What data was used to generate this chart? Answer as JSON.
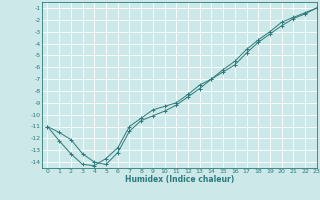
{
  "xlabel": "Humidex (Indice chaleur)",
  "ylabel": "",
  "background_color": "#cce8e8",
  "line_color": "#2d7a7a",
  "grid_color": "#ffffff",
  "xlim": [
    -0.5,
    23
  ],
  "ylim": [
    -14.5,
    -0.5
  ],
  "yticks": [
    -1,
    -2,
    -3,
    -4,
    -5,
    -6,
    -7,
    -8,
    -9,
    -10,
    -11,
    -12,
    -13,
    -14
  ],
  "xticks": [
    0,
    1,
    2,
    3,
    4,
    5,
    6,
    7,
    8,
    9,
    10,
    11,
    12,
    13,
    14,
    15,
    16,
    17,
    18,
    19,
    20,
    21,
    22,
    23
  ],
  "line1_x": [
    0,
    1,
    2,
    3,
    4,
    5,
    6,
    7,
    8,
    9,
    10,
    11,
    12,
    13,
    14,
    15,
    16,
    17,
    18,
    19,
    20,
    21,
    22,
    23
  ],
  "line1_y": [
    -11,
    -12.2,
    -13.3,
    -14.2,
    -14.3,
    -13.7,
    -12.8,
    -11.0,
    -10.3,
    -9.6,
    -9.3,
    -9.0,
    -8.3,
    -7.5,
    -7.0,
    -6.4,
    -5.8,
    -4.8,
    -3.9,
    -3.2,
    -2.5,
    -1.9,
    -1.5,
    -1.0
  ],
  "line2_x": [
    0,
    1,
    2,
    3,
    4,
    5,
    6,
    7,
    8,
    9,
    10,
    11,
    12,
    13,
    14,
    15,
    16,
    17,
    18,
    19,
    20,
    21,
    22,
    23
  ],
  "line2_y": [
    -11,
    -11.5,
    -12.1,
    -13.3,
    -14.0,
    -14.2,
    -13.2,
    -11.4,
    -10.5,
    -10.1,
    -9.7,
    -9.2,
    -8.5,
    -7.8,
    -7.0,
    -6.2,
    -5.5,
    -4.5,
    -3.7,
    -3.0,
    -2.2,
    -1.8,
    -1.4,
    -1.0
  ],
  "tick_fontsize": 4.5,
  "xlabel_fontsize": 5.5,
  "linewidth": 0.7,
  "markersize": 2.5
}
